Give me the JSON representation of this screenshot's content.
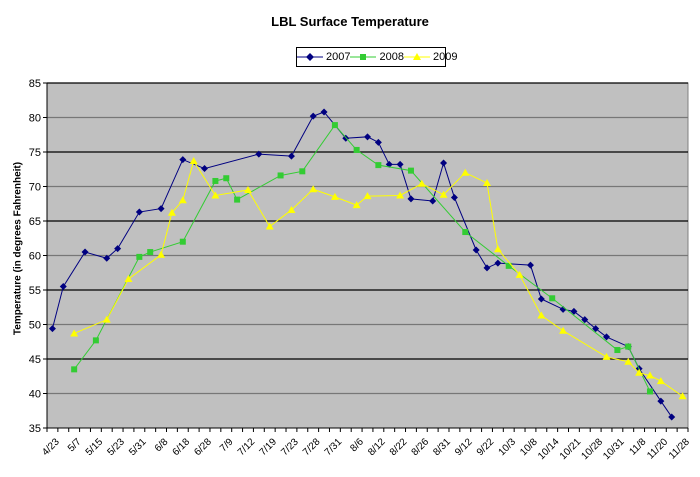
{
  "chart_data": {
    "type": "line",
    "title": "LBL Surface Temperature",
    "xlabel": "",
    "ylabel": "Temperature (in degrees Fahrenheit)",
    "ylim": [
      35,
      85
    ],
    "yticks": [
      35,
      40,
      45,
      50,
      55,
      60,
      65,
      70,
      75,
      80,
      85
    ],
    "grid": true,
    "legend_position": "top-center",
    "category_slots": 59,
    "x_tick_labels": [
      "4/23",
      "5/7",
      "5/15",
      "5/23",
      "5/31",
      "6/8",
      "6/18",
      "6/28",
      "7/9",
      "7/12",
      "7/19",
      "7/23",
      "7/28",
      "7/31",
      "8/6",
      "8/12",
      "8/22",
      "8/26",
      "8/31",
      "9/12",
      "9/22",
      "10/3",
      "10/8",
      "10/14",
      "10/21",
      "10/28",
      "10/31",
      "11/8",
      "11/20",
      "11/28"
    ],
    "series": [
      {
        "name": "2007",
        "color": "#000080",
        "marker": "diamond",
        "points": [
          [
            0,
            49.4
          ],
          [
            1,
            55.5
          ],
          [
            3,
            60.5
          ],
          [
            5,
            59.6
          ],
          [
            6,
            61.0
          ],
          [
            8,
            66.3
          ],
          [
            10,
            66.8
          ],
          [
            12,
            73.9
          ],
          [
            14,
            72.6
          ],
          [
            19,
            74.7
          ],
          [
            22,
            74.4
          ],
          [
            24,
            80.2
          ],
          [
            25,
            80.8
          ],
          [
            27,
            77.0
          ],
          [
            29,
            77.2
          ],
          [
            30,
            76.4
          ],
          [
            31,
            73.2
          ],
          [
            32,
            73.2
          ],
          [
            33,
            68.2
          ],
          [
            35,
            67.9
          ],
          [
            36,
            73.4
          ],
          [
            37,
            68.4
          ],
          [
            39,
            60.8
          ],
          [
            40,
            58.2
          ],
          [
            41,
            58.9
          ],
          [
            44,
            58.6
          ],
          [
            45,
            53.7
          ],
          [
            47,
            52.2
          ],
          [
            48,
            51.9
          ],
          [
            49,
            50.7
          ],
          [
            50,
            49.4
          ],
          [
            51,
            48.2
          ],
          [
            53,
            46.8
          ],
          [
            54,
            43.6
          ],
          [
            56,
            38.9
          ],
          [
            57,
            36.6
          ]
        ]
      },
      {
        "name": "2008",
        "color": "#33cc33",
        "marker": "square",
        "points": [
          [
            2,
            43.5
          ],
          [
            4,
            47.7
          ],
          [
            8,
            59.8
          ],
          [
            9,
            60.5
          ],
          [
            12,
            62.0
          ],
          [
            15,
            70.8
          ],
          [
            16,
            71.2
          ],
          [
            17,
            68.1
          ],
          [
            21,
            71.6
          ],
          [
            23,
            72.2
          ],
          [
            26,
            78.9
          ],
          [
            28,
            75.3
          ],
          [
            30,
            73.1
          ],
          [
            33,
            72.3
          ],
          [
            38,
            63.4
          ],
          [
            42,
            58.5
          ],
          [
            46,
            53.8
          ],
          [
            52,
            46.3
          ],
          [
            53,
            46.8
          ],
          [
            55,
            40.3
          ]
        ]
      },
      {
        "name": "2009",
        "color": "#ffff00",
        "marker": "triangle",
        "points": [
          [
            2,
            48.7
          ],
          [
            5,
            50.7
          ],
          [
            7,
            56.6
          ],
          [
            10,
            60.1
          ],
          [
            11,
            66.2
          ],
          [
            12,
            68.0
          ],
          [
            13,
            73.7
          ],
          [
            15,
            68.7
          ],
          [
            18,
            69.5
          ],
          [
            20,
            64.2
          ],
          [
            22,
            66.6
          ],
          [
            24,
            69.6
          ],
          [
            26,
            68.5
          ],
          [
            28,
            67.3
          ],
          [
            29,
            68.6
          ],
          [
            32,
            68.7
          ],
          [
            34,
            70.4
          ],
          [
            36,
            68.8
          ],
          [
            38,
            72.0
          ],
          [
            40,
            70.5
          ],
          [
            41,
            60.9
          ],
          [
            43,
            57.2
          ],
          [
            45,
            51.3
          ],
          [
            47,
            49.1
          ],
          [
            51,
            45.3
          ],
          [
            53,
            44.6
          ],
          [
            54,
            43.0
          ],
          [
            55,
            42.6
          ],
          [
            56,
            41.8
          ],
          [
            58,
            39.6
          ]
        ]
      }
    ]
  }
}
